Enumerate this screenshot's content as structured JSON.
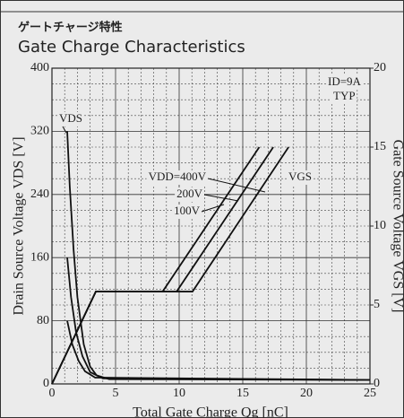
{
  "chart_data": {
    "type": "line",
    "title_jp": "ゲートチャージ特性",
    "title": "Gate Charge Characteristics",
    "xlabel": "Total Gate Charge  Qg [nC]",
    "ylabel": "Drain Source Voltage VDS [V]",
    "y2label": "Gate Source Voltage  VGS [V]",
    "xlim": [
      0,
      25
    ],
    "xticks": [
      0,
      5,
      10,
      15,
      20,
      25
    ],
    "ylim": [
      0,
      400
    ],
    "yticks": [
      0,
      80,
      160,
      240,
      320,
      400
    ],
    "y2lim": [
      0,
      20
    ],
    "y2ticks": [
      0,
      5,
      10,
      15,
      20
    ],
    "grid": true,
    "color": "#111111",
    "annotations": [
      "ID=9A",
      "TYP",
      "VDS",
      "VGS",
      "VDD=400V",
      "200V",
      "100V"
    ],
    "series": [
      {
        "x": [
          1.2,
          1.4,
          1.7,
          2.0,
          2.5,
          3.0,
          3.5,
          4.5,
          25
        ],
        "values": [
          320,
          250,
          170,
          110,
          50,
          22,
          11,
          6,
          5
        ]
      },
      {
        "x": [
          1.2,
          1.5,
          1.9,
          2.4,
          3.0,
          4.0,
          25
        ],
        "values": [
          160,
          110,
          65,
          35,
          15,
          7,
          5
        ]
      },
      {
        "x": [
          1.2,
          1.6,
          2.1,
          2.6,
          3.4,
          25
        ],
        "values": [
          80,
          50,
          29,
          16,
          8,
          5
        ]
      },
      {
        "axis": "y2",
        "x": [
          0,
          3.45,
          11.05,
          18.6
        ],
        "values": [
          0,
          5.85,
          5.85,
          15
        ]
      },
      {
        "axis": "y2",
        "x": [
          0,
          3.45,
          9.8,
          17.4
        ],
        "values": [
          0,
          5.85,
          5.85,
          15
        ]
      },
      {
        "axis": "y2",
        "x": [
          0,
          3.45,
          8.7,
          16.3
        ],
        "values": [
          0,
          5.85,
          5.85,
          15
        ]
      }
    ]
  }
}
